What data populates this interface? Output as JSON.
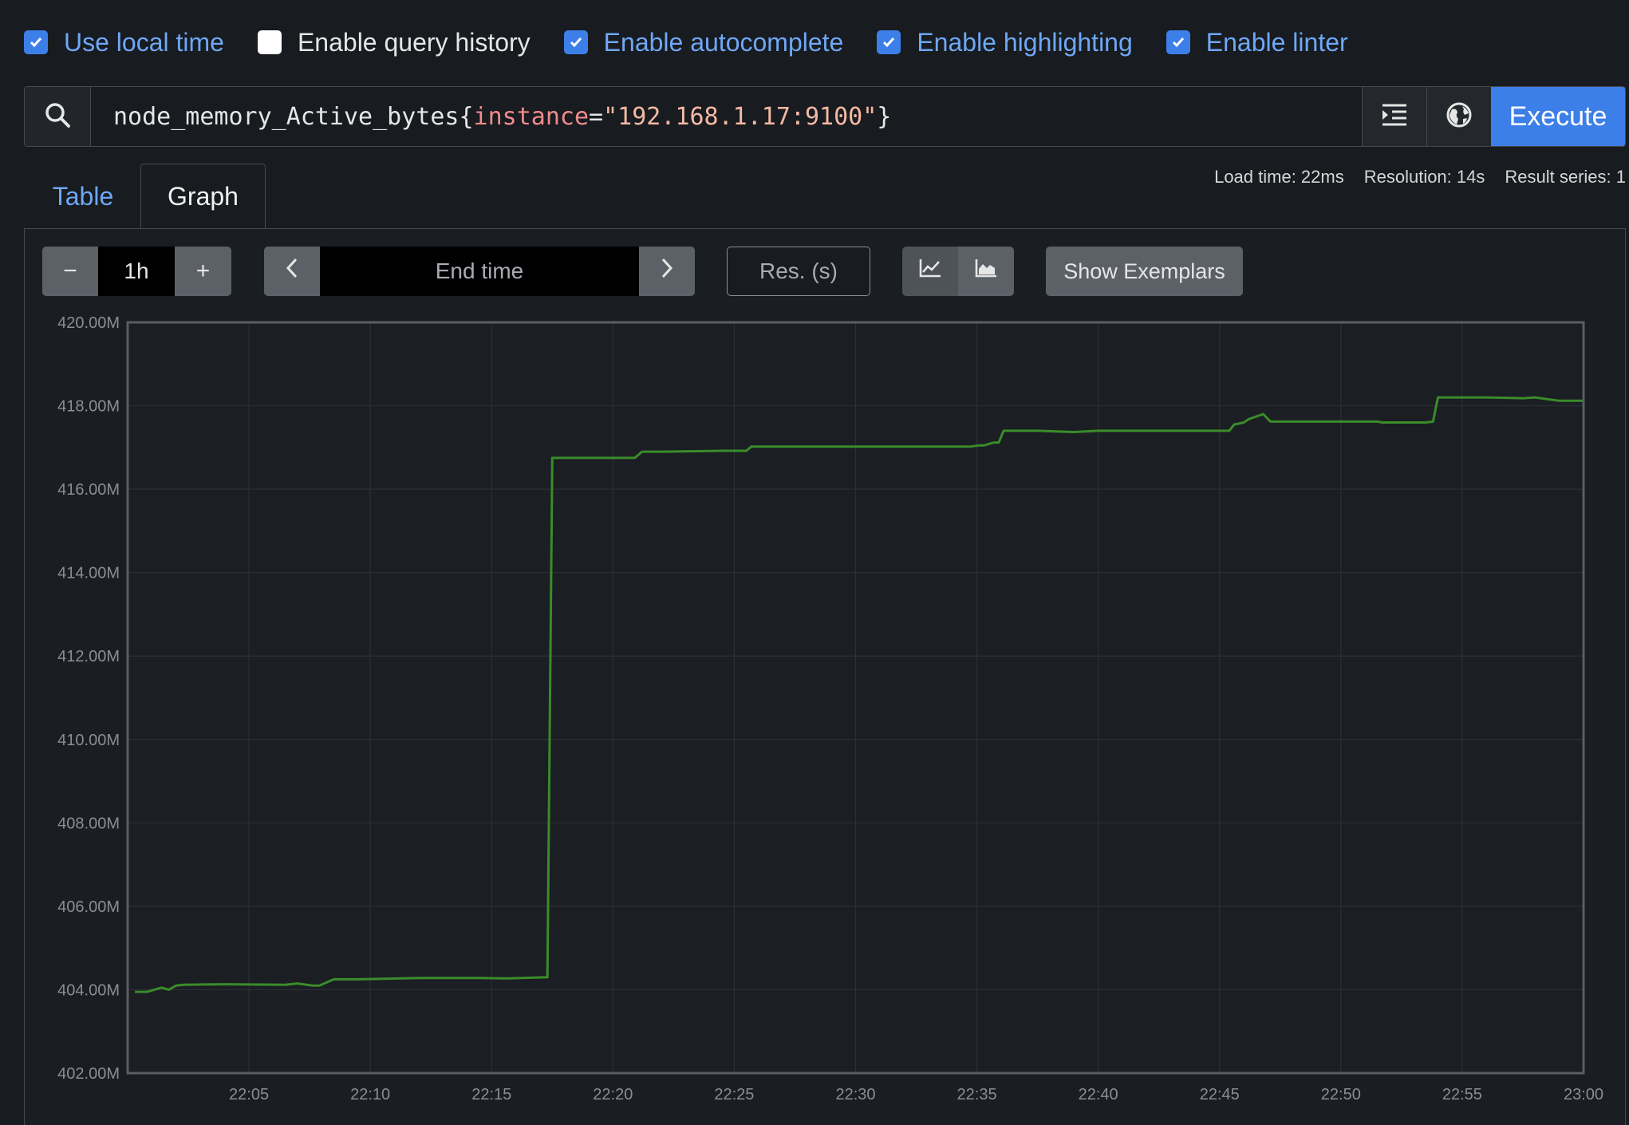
{
  "options": [
    {
      "label": "Use local time",
      "checked": true
    },
    {
      "label": "Enable query history",
      "checked": false
    },
    {
      "label": "Enable autocomplete",
      "checked": true
    },
    {
      "label": "Enable highlighting",
      "checked": true
    },
    {
      "label": "Enable linter",
      "checked": true
    }
  ],
  "query": {
    "metric": "node_memory_Active_bytes",
    "open_brace": "{",
    "label_name": "instance",
    "equals": "=",
    "label_value": "\"192.168.1.17:9100\"",
    "close_brace": "}"
  },
  "execute_label": "Execute",
  "tabs": {
    "table": "Table",
    "graph": "Graph"
  },
  "stats": {
    "load_time": "Load time: 22ms",
    "resolution": "Resolution: 14s",
    "result_series": "Result series: 1"
  },
  "toolbar": {
    "range_minus": "−",
    "range_value": "1h",
    "range_plus": "+",
    "prev": "‹",
    "end_time_placeholder": "End time",
    "next": "›",
    "res_placeholder": "Res. (s)",
    "show_exemplars": "Show Exemplars"
  },
  "icons": {
    "search": "search-icon",
    "format": "format-query-icon",
    "explore": "metrics-explorer-icon",
    "line_chart": "line-chart-icon",
    "stacked_chart": "stacked-chart-icon"
  },
  "colors": {
    "series": "#3a8c2a",
    "accent": "#3d7fe8"
  },
  "chart_data": {
    "type": "line",
    "ylim": [
      402,
      420
    ],
    "yticks": [
      "402.00M",
      "404.00M",
      "406.00M",
      "408.00M",
      "410.00M",
      "412.00M",
      "414.00M",
      "416.00M",
      "418.00M",
      "420.00M"
    ],
    "xticks": [
      "22:05",
      "22:10",
      "22:15",
      "22:20",
      "22:25",
      "22:30",
      "22:35",
      "22:40",
      "22:45",
      "22:50",
      "22:55",
      "23:00"
    ],
    "xrange_minutes": [
      0,
      60
    ],
    "grid": true,
    "series": [
      {
        "x": [
          0.3,
          0.8,
          1.1,
          1.4,
          1.7,
          2.0,
          2.3,
          4.0,
          6.5,
          7.0,
          7.6,
          7.9,
          8.5,
          9.5,
          12.0,
          14.5,
          15.7,
          17.3,
          17.5,
          20.9,
          21.2,
          22.0,
          24.5,
          25.5,
          25.7,
          34.7,
          35.1,
          35.3,
          35.7,
          35.9,
          36.1,
          37.5,
          39.0,
          40.0,
          42.0,
          43.0,
          44.5,
          45.4,
          45.6,
          46.0,
          46.2,
          46.8,
          47.1,
          47.3,
          50.0,
          51.5,
          51.7,
          53.5,
          53.8,
          54.0,
          56.0,
          57.5,
          58.0,
          59.0,
          60.0
        ],
        "y": [
          403.95,
          403.95,
          404.0,
          404.05,
          404.0,
          404.1,
          404.12,
          404.13,
          404.12,
          404.15,
          404.1,
          404.1,
          404.25,
          404.25,
          404.28,
          404.28,
          404.27,
          404.3,
          416.75,
          416.75,
          416.9,
          416.9,
          416.92,
          416.92,
          417.02,
          417.02,
          417.05,
          417.05,
          417.12,
          417.12,
          417.4,
          417.4,
          417.37,
          417.4,
          417.4,
          417.4,
          417.4,
          417.4,
          417.55,
          417.6,
          417.68,
          417.8,
          417.62,
          417.62,
          417.62,
          417.62,
          417.6,
          417.6,
          417.62,
          418.2,
          418.2,
          418.18,
          418.2,
          418.12,
          418.12
        ]
      }
    ]
  }
}
